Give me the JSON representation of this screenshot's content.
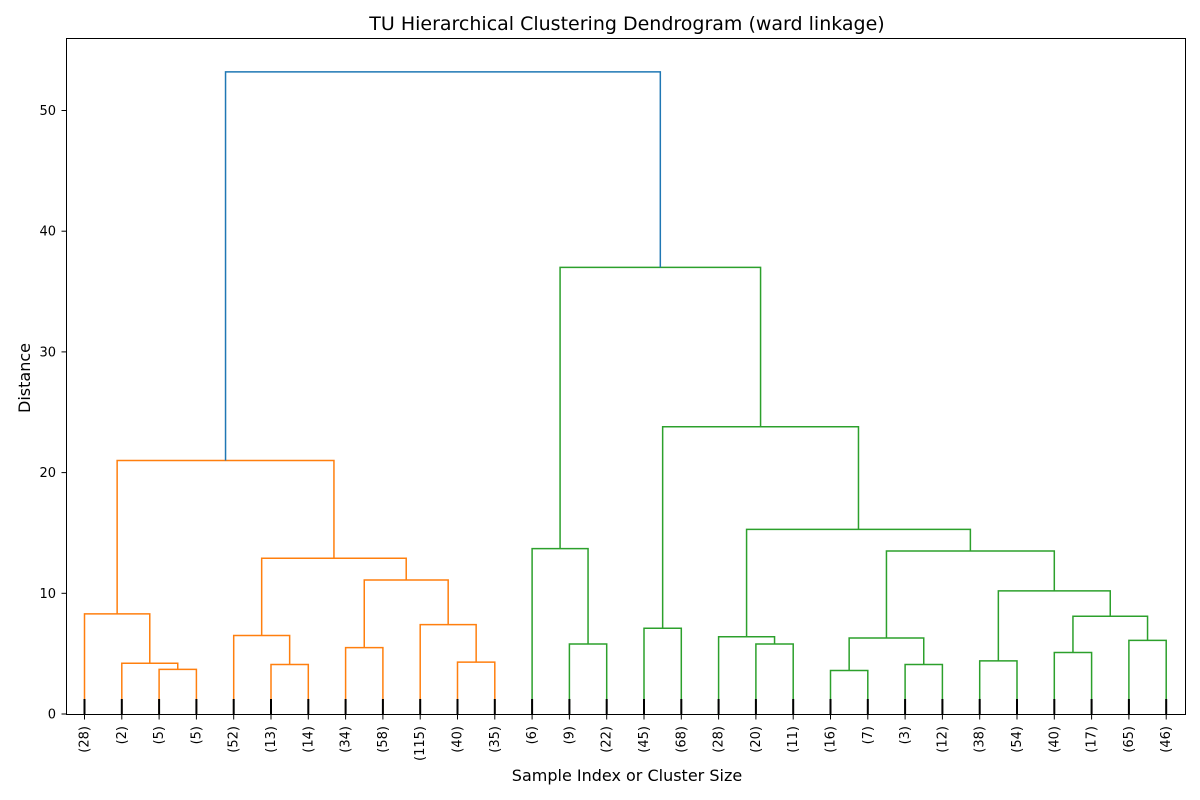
{
  "chart_data": {
    "type": "dendrogram",
    "title": "TU Hierarchical Clustering Dendrogram (ward linkage)",
    "xlabel": "Sample Index or Cluster Size",
    "ylabel": "Distance",
    "ylim": [
      0,
      56
    ],
    "yticks": [
      0,
      10,
      20,
      30,
      40,
      50
    ],
    "grid": false,
    "leaves": [
      "(28)",
      "(2)",
      "(5)",
      "(5)",
      "(52)",
      "(13)",
      "(14)",
      "(34)",
      "(58)",
      "(115)",
      "(40)",
      "(35)",
      "(6)",
      "(9)",
      "(22)",
      "(45)",
      "(68)",
      "(28)",
      "(20)",
      "(11)",
      "(16)",
      "(7)",
      "(3)",
      "(12)",
      "(38)",
      "(54)",
      "(40)",
      "(17)",
      "(65)",
      "(46)"
    ],
    "colors": {
      "cluster_1": "#ff7f0e",
      "cluster_2": "#2ca02c",
      "root": "#1f77b4",
      "leaf_ticks": "#000000"
    },
    "merges": [
      {
        "id": "n1",
        "left": "L2",
        "right": "L3",
        "height": 3.7,
        "color": "cluster_1"
      },
      {
        "id": "n2",
        "left": "L1",
        "right": "n1",
        "height": 4.2,
        "color": "cluster_1"
      },
      {
        "id": "n3",
        "left": "L0",
        "right": "n2",
        "height": 8.3,
        "color": "cluster_1"
      },
      {
        "id": "n4",
        "left": "L5",
        "right": "L6",
        "height": 4.1,
        "color": "cluster_1"
      },
      {
        "id": "n5",
        "left": "L4",
        "right": "n4",
        "height": 6.5,
        "color": "cluster_1"
      },
      {
        "id": "n6",
        "left": "L7",
        "right": "L8",
        "height": 5.5,
        "color": "cluster_1"
      },
      {
        "id": "n7",
        "left": "L10",
        "right": "L11",
        "height": 4.3,
        "color": "cluster_1"
      },
      {
        "id": "n8",
        "left": "L9",
        "right": "n7",
        "height": 7.4,
        "color": "cluster_1"
      },
      {
        "id": "n9",
        "left": "n6",
        "right": "n8",
        "height": 11.1,
        "color": "cluster_1"
      },
      {
        "id": "n10",
        "left": "n5",
        "right": "n9",
        "height": 12.9,
        "color": "cluster_1"
      },
      {
        "id": "n11",
        "left": "n3",
        "right": "n10",
        "height": 21.0,
        "color": "cluster_1"
      },
      {
        "id": "n12",
        "left": "L13",
        "right": "L14",
        "height": 5.8,
        "color": "cluster_2"
      },
      {
        "id": "n13",
        "left": "L12",
        "right": "n12",
        "height": 13.7,
        "color": "cluster_2"
      },
      {
        "id": "n14",
        "left": "L15",
        "right": "L16",
        "height": 7.1,
        "color": "cluster_2"
      },
      {
        "id": "n15",
        "left": "L18",
        "right": "L19",
        "height": 5.8,
        "color": "cluster_2"
      },
      {
        "id": "n16",
        "left": "L17",
        "right": "n15",
        "height": 6.4,
        "color": "cluster_2"
      },
      {
        "id": "n17",
        "left": "L20",
        "right": "L21",
        "height": 3.6,
        "color": "cluster_2"
      },
      {
        "id": "n18",
        "left": "L22",
        "right": "L23",
        "height": 4.1,
        "color": "cluster_2"
      },
      {
        "id": "n19",
        "left": "n17",
        "right": "n18",
        "height": 6.3,
        "color": "cluster_2"
      },
      {
        "id": "n20",
        "left": "L24",
        "right": "L25",
        "height": 4.4,
        "color": "cluster_2"
      },
      {
        "id": "n21",
        "left": "L26",
        "right": "L27",
        "height": 5.1,
        "color": "cluster_2"
      },
      {
        "id": "n22",
        "left": "L28",
        "right": "L29",
        "height": 6.1,
        "color": "cluster_2"
      },
      {
        "id": "n23",
        "left": "n21",
        "right": "n22",
        "height": 8.1,
        "color": "cluster_2"
      },
      {
        "id": "n24",
        "left": "n20",
        "right": "n23",
        "height": 10.2,
        "color": "cluster_2"
      },
      {
        "id": "n25",
        "left": "n19",
        "right": "n24",
        "height": 13.5,
        "color": "cluster_2"
      },
      {
        "id": "n26",
        "left": "n16",
        "right": "n25",
        "height": 15.3,
        "color": "cluster_2"
      },
      {
        "id": "n27",
        "left": "n14",
        "right": "n26",
        "height": 23.8,
        "color": "cluster_2"
      },
      {
        "id": "n28",
        "left": "n13",
        "right": "n27",
        "height": 37.0,
        "color": "cluster_2"
      },
      {
        "id": "n29",
        "left": "n11",
        "right": "n28",
        "height": 53.2,
        "color": "root"
      }
    ]
  }
}
